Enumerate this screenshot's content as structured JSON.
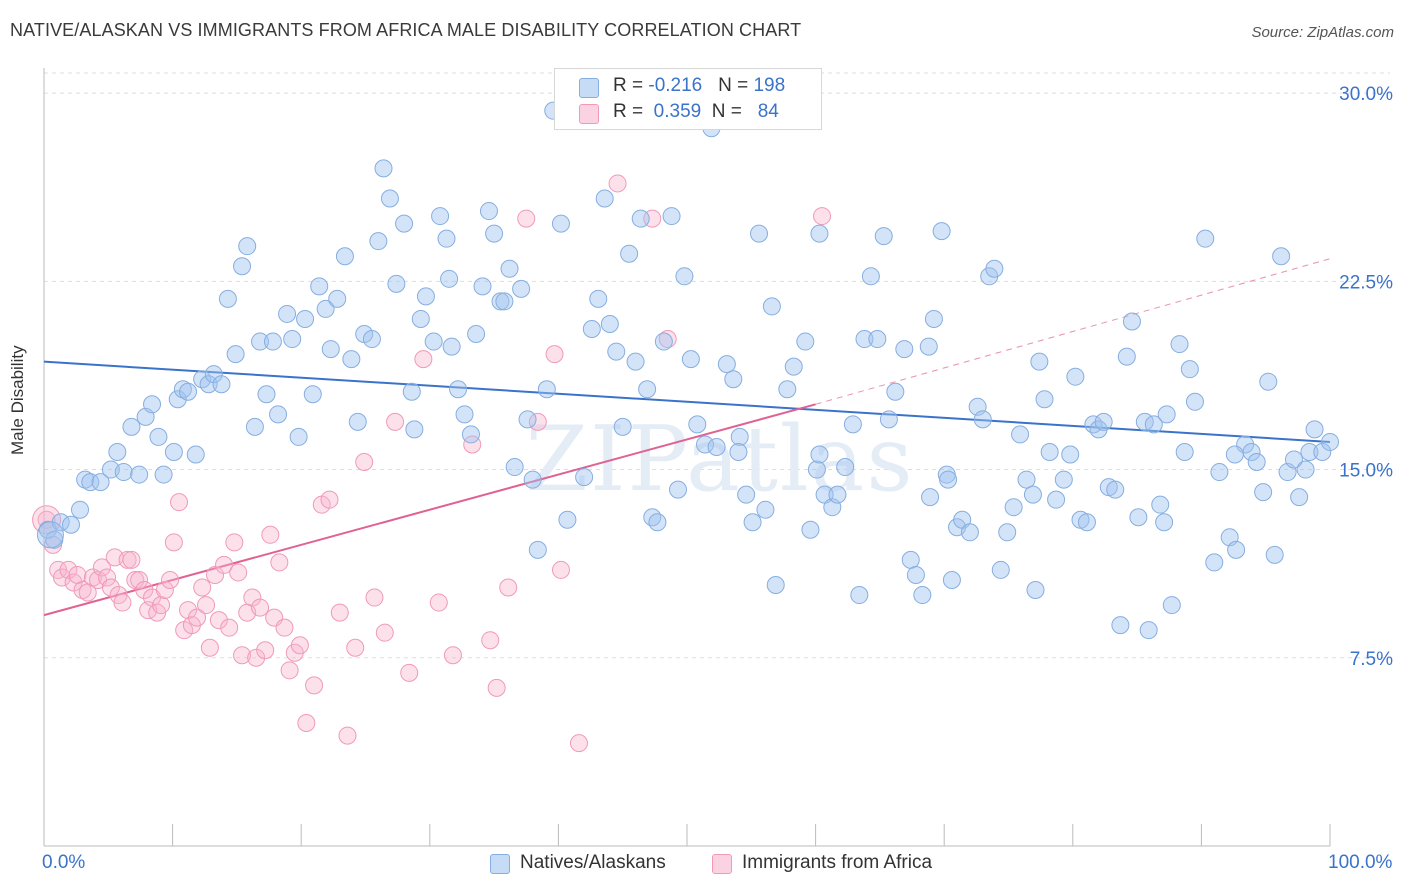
{
  "title": "NATIVE/ALASKAN VS IMMIGRANTS FROM AFRICA MALE DISABILITY CORRELATION CHART",
  "source": "Source: ZipAtlas.com",
  "watermark": "ZIPatlas",
  "colors": {
    "blue": "#3a73c9",
    "blue_fill": "rgba(160,196,240,0.45)",
    "blue_stroke": "#86aee0",
    "pink": "#e06292",
    "pink_fill": "rgba(248,180,205,0.40)",
    "pink_stroke": "#f09ab8",
    "grid": "#dddddd"
  },
  "legend_top": {
    "rows": [
      {
        "r_label": "R = ",
        "r_value": "-0.216",
        "n_label": "N = ",
        "n_value": "198"
      },
      {
        "r_label": "R = ",
        "r_value": "0.359",
        "n_label": "N = ",
        "n_value": "84"
      }
    ]
  },
  "legend_bottom": {
    "items": [
      "Natives/Alaskans",
      "Immigrants from Africa"
    ]
  },
  "chart_data": {
    "type": "scatter",
    "xlabel": "",
    "ylabel": "Male Disability",
    "xlim": [
      0,
      100
    ],
    "ylim": [
      0,
      31
    ],
    "x_tick_labels": [
      "0.0%",
      "100.0%"
    ],
    "y_ticks": [
      7.5,
      15.0,
      22.5,
      30.0
    ],
    "y_tick_labels": [
      "7.5%",
      "15.0%",
      "22.5%",
      "30.0%"
    ],
    "grid": true,
    "legend_placement": "bottom",
    "series": [
      {
        "name": "Natives/Alaskans",
        "r": -0.216,
        "n": 198,
        "trend": {
          "x0": 0,
          "y0": 19.3,
          "x1": 100,
          "y1": 16.1,
          "style": "solid"
        },
        "points": [
          [
            0.3,
            12.6
          ],
          [
            0.8,
            12.2
          ],
          [
            1.3,
            12.9
          ],
          [
            2.1,
            12.8
          ],
          [
            2.8,
            13.4
          ],
          [
            3.2,
            14.6
          ],
          [
            3.6,
            14.5
          ],
          [
            4.4,
            14.5
          ],
          [
            5.2,
            15.0
          ],
          [
            5.7,
            15.7
          ],
          [
            6.2,
            14.9
          ],
          [
            6.8,
            16.7
          ],
          [
            7.4,
            14.8
          ],
          [
            7.9,
            17.1
          ],
          [
            8.4,
            17.6
          ],
          [
            8.9,
            16.3
          ],
          [
            9.3,
            14.8
          ],
          [
            10.1,
            15.7
          ],
          [
            10.4,
            17.8
          ],
          [
            10.8,
            18.2
          ],
          [
            11.2,
            18.1
          ],
          [
            11.8,
            15.6
          ],
          [
            12.3,
            18.6
          ],
          [
            12.8,
            18.4
          ],
          [
            13.2,
            18.8
          ],
          [
            13.8,
            18.4
          ],
          [
            14.3,
            21.8
          ],
          [
            14.9,
            19.6
          ],
          [
            15.4,
            23.1
          ],
          [
            15.8,
            23.9
          ],
          [
            16.4,
            16.7
          ],
          [
            16.8,
            20.1
          ],
          [
            17.3,
            18.0
          ],
          [
            17.8,
            20.1
          ],
          [
            18.2,
            17.2
          ],
          [
            18.9,
            21.2
          ],
          [
            19.3,
            20.2
          ],
          [
            19.8,
            16.3
          ],
          [
            20.3,
            21.0
          ],
          [
            20.9,
            18.0
          ],
          [
            21.4,
            22.3
          ],
          [
            21.9,
            21.4
          ],
          [
            22.3,
            19.8
          ],
          [
            22.8,
            21.8
          ],
          [
            23.4,
            23.5
          ],
          [
            23.9,
            19.4
          ],
          [
            24.4,
            16.9
          ],
          [
            24.9,
            20.4
          ],
          [
            25.5,
            20.2
          ],
          [
            26.0,
            24.1
          ],
          [
            26.4,
            27.0
          ],
          [
            26.9,
            25.8
          ],
          [
            27.4,
            22.4
          ],
          [
            28.0,
            24.8
          ],
          [
            28.6,
            18.1
          ],
          [
            28.8,
            16.6
          ],
          [
            29.3,
            21.0
          ],
          [
            29.7,
            21.9
          ],
          [
            30.3,
            20.1
          ],
          [
            30.8,
            25.1
          ],
          [
            31.3,
            24.2
          ],
          [
            31.7,
            19.9
          ],
          [
            32.2,
            18.2
          ],
          [
            32.7,
            17.2
          ],
          [
            33.2,
            16.4
          ],
          [
            33.6,
            20.4
          ],
          [
            34.1,
            22.3
          ],
          [
            34.6,
            25.3
          ],
          [
            35.0,
            24.4
          ],
          [
            35.5,
            21.7
          ],
          [
            35.8,
            21.7
          ],
          [
            36.2,
            23.0
          ],
          [
            36.6,
            15.1
          ],
          [
            37.1,
            22.2
          ],
          [
            37.6,
            17.0
          ],
          [
            38.0,
            14.6
          ],
          [
            38.4,
            11.8
          ],
          [
            39.1,
            18.2
          ],
          [
            39.6,
            29.3
          ],
          [
            40.2,
            24.8
          ],
          [
            40.7,
            13.0
          ],
          [
            42.0,
            14.7
          ],
          [
            42.6,
            20.6
          ],
          [
            43.1,
            21.8
          ],
          [
            43.6,
            25.8
          ],
          [
            44.0,
            20.8
          ],
          [
            44.5,
            19.7
          ],
          [
            45.0,
            16.7
          ],
          [
            45.5,
            23.6
          ],
          [
            46.0,
            19.3
          ],
          [
            46.4,
            25.0
          ],
          [
            46.9,
            18.2
          ],
          [
            47.3,
            13.1
          ],
          [
            47.7,
            12.9
          ],
          [
            48.2,
            20.1
          ],
          [
            48.8,
            25.1
          ],
          [
            49.3,
            14.2
          ],
          [
            49.8,
            22.7
          ],
          [
            50.3,
            19.4
          ],
          [
            50.8,
            16.8
          ],
          [
            51.4,
            16.0
          ],
          [
            51.9,
            28.6
          ],
          [
            52.3,
            15.9
          ],
          [
            53.1,
            19.2
          ],
          [
            53.6,
            18.6
          ],
          [
            54.1,
            16.3
          ],
          [
            54.6,
            14.0
          ],
          [
            55.1,
            12.9
          ],
          [
            55.6,
            24.4
          ],
          [
            56.1,
            13.4
          ],
          [
            56.6,
            21.5
          ],
          [
            56.9,
            10.4
          ],
          [
            57.8,
            18.2
          ],
          [
            58.3,
            19.1
          ],
          [
            59.2,
            20.1
          ],
          [
            59.6,
            12.6
          ],
          [
            60.1,
            15.0
          ],
          [
            60.3,
            15.6
          ],
          [
            60.7,
            14.0
          ],
          [
            61.3,
            13.5
          ],
          [
            61.7,
            14.0
          ],
          [
            62.3,
            15.1
          ],
          [
            62.9,
            16.8
          ],
          [
            63.4,
            10.0
          ],
          [
            63.8,
            20.2
          ],
          [
            64.3,
            22.7
          ],
          [
            64.8,
            20.2
          ],
          [
            65.3,
            24.3
          ],
          [
            65.7,
            17.0
          ],
          [
            66.2,
            18.1
          ],
          [
            66.9,
            19.8
          ],
          [
            67.4,
            11.4
          ],
          [
            67.8,
            10.8
          ],
          [
            68.3,
            10.0
          ],
          [
            68.8,
            19.9
          ],
          [
            69.2,
            21.0
          ],
          [
            69.8,
            24.5
          ],
          [
            70.2,
            14.8
          ],
          [
            70.6,
            10.6
          ],
          [
            71.0,
            12.7
          ],
          [
            71.4,
            13.0
          ],
          [
            72.0,
            12.5
          ],
          [
            72.6,
            17.5
          ],
          [
            73.0,
            17.0
          ],
          [
            73.5,
            22.7
          ],
          [
            73.9,
            23.0
          ],
          [
            74.4,
            11.0
          ],
          [
            74.9,
            12.5
          ],
          [
            75.4,
            13.5
          ],
          [
            75.9,
            16.4
          ],
          [
            76.4,
            14.6
          ],
          [
            76.9,
            14.0
          ],
          [
            77.4,
            19.3
          ],
          [
            77.8,
            17.8
          ],
          [
            78.2,
            15.7
          ],
          [
            78.7,
            13.8
          ],
          [
            79.3,
            14.6
          ],
          [
            79.8,
            15.6
          ],
          [
            80.2,
            18.7
          ],
          [
            80.6,
            13.0
          ],
          [
            81.1,
            12.9
          ],
          [
            81.6,
            16.8
          ],
          [
            82.0,
            16.6
          ],
          [
            82.4,
            16.9
          ],
          [
            82.8,
            14.3
          ],
          [
            83.3,
            14.2
          ],
          [
            83.7,
            8.8
          ],
          [
            84.2,
            19.5
          ],
          [
            84.6,
            20.9
          ],
          [
            85.1,
            13.1
          ],
          [
            85.6,
            16.9
          ],
          [
            85.9,
            8.6
          ],
          [
            86.3,
            16.8
          ],
          [
            86.8,
            13.6
          ],
          [
            87.1,
            12.9
          ],
          [
            87.7,
            9.6
          ],
          [
            88.3,
            20.0
          ],
          [
            88.7,
            15.7
          ],
          [
            89.1,
            19.0
          ],
          [
            89.5,
            17.7
          ],
          [
            90.3,
            24.2
          ],
          [
            91.0,
            11.3
          ],
          [
            91.4,
            14.9
          ],
          [
            92.2,
            12.3
          ],
          [
            92.7,
            11.8
          ],
          [
            93.4,
            16.0
          ],
          [
            93.9,
            15.7
          ],
          [
            94.3,
            15.3
          ],
          [
            94.8,
            14.1
          ],
          [
            95.2,
            18.5
          ],
          [
            95.7,
            11.6
          ],
          [
            96.2,
            23.5
          ],
          [
            96.7,
            14.9
          ],
          [
            97.2,
            15.4
          ],
          [
            97.6,
            13.9
          ],
          [
            98.1,
            15.0
          ],
          [
            98.4,
            15.7
          ],
          [
            98.8,
            16.6
          ],
          [
            99.4,
            15.7
          ],
          [
            100.0,
            16.1
          ],
          [
            31.5,
            22.6
          ],
          [
            54.0,
            15.7
          ],
          [
            60.3,
            24.4
          ],
          [
            68.9,
            13.9
          ],
          [
            70.3,
            14.6
          ],
          [
            77.1,
            10.2
          ],
          [
            87.3,
            17.2
          ],
          [
            92.6,
            15.6
          ]
        ]
      },
      {
        "name": "Immigrants from Africa",
        "r": 0.359,
        "n": 84,
        "trend": {
          "x0": 0,
          "y0": 9.2,
          "x1": 60,
          "y1": 17.6,
          "x2": 100,
          "y2": 23.4,
          "style": "solid-then-dashed"
        },
        "points": [
          [
            0.2,
            13.0
          ],
          [
            0.7,
            12.0
          ],
          [
            1.1,
            11.0
          ],
          [
            1.4,
            10.7
          ],
          [
            1.9,
            11.0
          ],
          [
            2.3,
            10.5
          ],
          [
            2.6,
            10.8
          ],
          [
            3.0,
            10.2
          ],
          [
            3.4,
            10.1
          ],
          [
            3.8,
            10.7
          ],
          [
            4.2,
            10.6
          ],
          [
            4.5,
            11.1
          ],
          [
            4.9,
            10.7
          ],
          [
            5.2,
            10.3
          ],
          [
            5.5,
            11.5
          ],
          [
            5.8,
            10.0
          ],
          [
            6.1,
            9.7
          ],
          [
            6.5,
            11.4
          ],
          [
            6.8,
            11.4
          ],
          [
            7.1,
            10.6
          ],
          [
            7.4,
            10.6
          ],
          [
            7.8,
            10.2
          ],
          [
            8.1,
            9.4
          ],
          [
            8.4,
            9.9
          ],
          [
            8.8,
            9.3
          ],
          [
            9.1,
            9.6
          ],
          [
            9.4,
            10.2
          ],
          [
            9.8,
            10.6
          ],
          [
            10.1,
            12.1
          ],
          [
            10.5,
            13.7
          ],
          [
            10.9,
            8.6
          ],
          [
            11.2,
            9.4
          ],
          [
            11.5,
            8.8
          ],
          [
            11.9,
            9.1
          ],
          [
            12.3,
            10.3
          ],
          [
            12.6,
            9.6
          ],
          [
            12.9,
            7.9
          ],
          [
            13.3,
            10.8
          ],
          [
            13.6,
            9.0
          ],
          [
            14.0,
            11.2
          ],
          [
            14.4,
            8.7
          ],
          [
            14.8,
            12.1
          ],
          [
            15.1,
            10.9
          ],
          [
            15.4,
            7.6
          ],
          [
            15.8,
            9.3
          ],
          [
            16.2,
            9.9
          ],
          [
            16.5,
            7.5
          ],
          [
            16.8,
            9.5
          ],
          [
            17.2,
            7.8
          ],
          [
            17.6,
            12.4
          ],
          [
            17.9,
            9.1
          ],
          [
            18.3,
            11.3
          ],
          [
            18.7,
            8.7
          ],
          [
            19.1,
            7.0
          ],
          [
            19.5,
            7.7
          ],
          [
            19.9,
            8.0
          ],
          [
            20.4,
            4.9
          ],
          [
            21.0,
            6.4
          ],
          [
            21.6,
            13.6
          ],
          [
            22.2,
            13.8
          ],
          [
            23.0,
            9.3
          ],
          [
            23.6,
            4.4
          ],
          [
            24.2,
            7.9
          ],
          [
            24.9,
            15.3
          ],
          [
            25.7,
            9.9
          ],
          [
            26.5,
            8.5
          ],
          [
            27.3,
            16.9
          ],
          [
            28.4,
            6.9
          ],
          [
            29.5,
            19.4
          ],
          [
            30.7,
            9.7
          ],
          [
            31.8,
            7.6
          ],
          [
            33.3,
            16.0
          ],
          [
            34.7,
            8.2
          ],
          [
            35.2,
            6.3
          ],
          [
            36.1,
            10.3
          ],
          [
            37.5,
            25.0
          ],
          [
            38.4,
            16.9
          ],
          [
            39.7,
            19.6
          ],
          [
            40.2,
            11.0
          ],
          [
            41.6,
            4.1
          ],
          [
            44.6,
            26.4
          ],
          [
            47.3,
            25.0
          ],
          [
            48.5,
            20.2
          ],
          [
            60.5,
            25.1
          ]
        ]
      }
    ]
  }
}
